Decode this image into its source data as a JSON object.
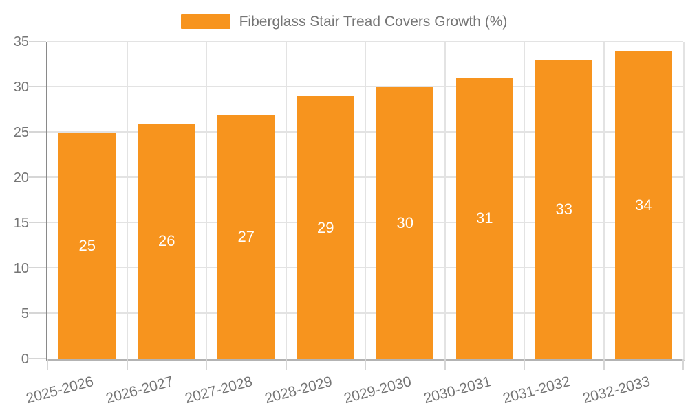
{
  "legend": {
    "label": "Fiberglass Stair Tread Covers Growth (%)"
  },
  "chart_data": {
    "type": "bar",
    "title": "Fiberglass Stair Tread Covers Growth (%)",
    "categories": [
      "2025-2026",
      "2026-2027",
      "2027-2028",
      "2028-2029",
      "2029-2030",
      "2030-2031",
      "2031-2032",
      "2032-2033"
    ],
    "values": [
      25,
      26,
      27,
      29,
      30,
      31,
      33,
      34
    ],
    "xlabel": "",
    "ylabel": "",
    "ylim": [
      0,
      35
    ],
    "yticks": [
      0,
      5,
      10,
      15,
      20,
      25,
      30,
      35
    ],
    "grid": true,
    "legend_position": "top-center",
    "value_labels_inside_bars": true,
    "colors": {
      "bar": "#f7941e",
      "value_label": "#ffffff",
      "axis_text": "#757575",
      "gridline": "#e3e3e3",
      "tick": "#d6d6d6",
      "y_axis_line": "#8a8a8a",
      "x_axis_line": "#b3b3b3",
      "plot_right_border": "#e3e3e3",
      "background": "#ffffff"
    }
  }
}
